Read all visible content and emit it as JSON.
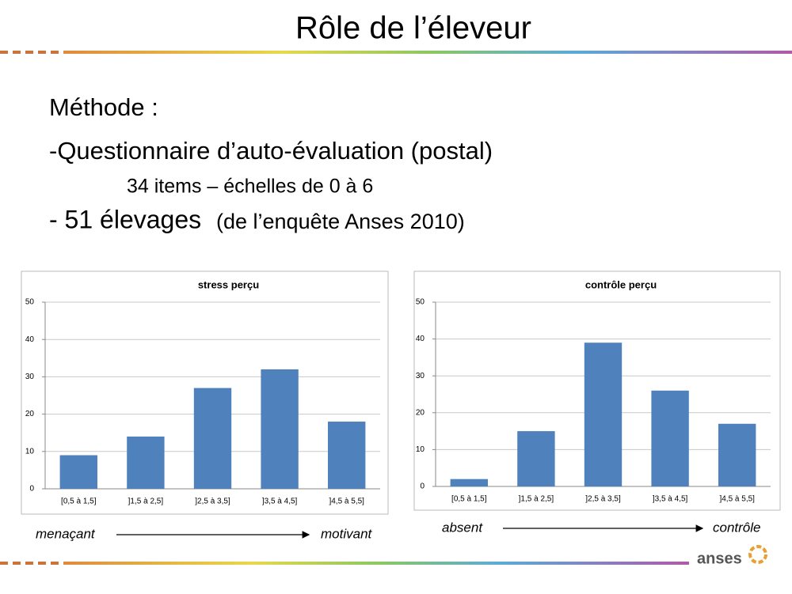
{
  "title": "Rôle de l’éleveur",
  "body": {
    "line1": "Méthode :",
    "line2": "-Questionnaire d’auto-évaluation (postal)",
    "line3": "34 items – échelles de 0 à 6",
    "line4_bold": "- 51 élevages",
    "line4_rest": "(de l’enquête Anses 2010)"
  },
  "logo": "anses",
  "chart_data": [
    {
      "type": "bar",
      "title": "stress perçu",
      "categories": [
        "[0,5 à 1,5]",
        "]1,5 à 2,5]",
        "]2,5 à 3,5]",
        "]3,5 à 4,5]",
        "]4,5 à 5,5]"
      ],
      "values": [
        9,
        14,
        27,
        32,
        18
      ],
      "color": "#4f81bd",
      "ylim": [
        0,
        50
      ],
      "yticks": [
        0,
        10,
        20,
        30,
        40,
        50
      ],
      "grid": true,
      "arrow_labels": [
        "menaçant",
        "motivant"
      ]
    },
    {
      "type": "bar",
      "title": "contrôle perçu",
      "categories": [
        "[0,5 à 1,5]",
        "]1,5 à 2,5]",
        "]2,5 à 3,5]",
        "]3,5 à 4,5]",
        "]4,5 à 5,5]"
      ],
      "values": [
        2,
        15,
        39,
        26,
        17
      ],
      "color": "#4f81bd",
      "ylim": [
        0,
        50
      ],
      "yticks": [
        0,
        10,
        20,
        30,
        40,
        50
      ],
      "grid": true,
      "arrow_labels": [
        "absent",
        "contrôle"
      ]
    }
  ]
}
